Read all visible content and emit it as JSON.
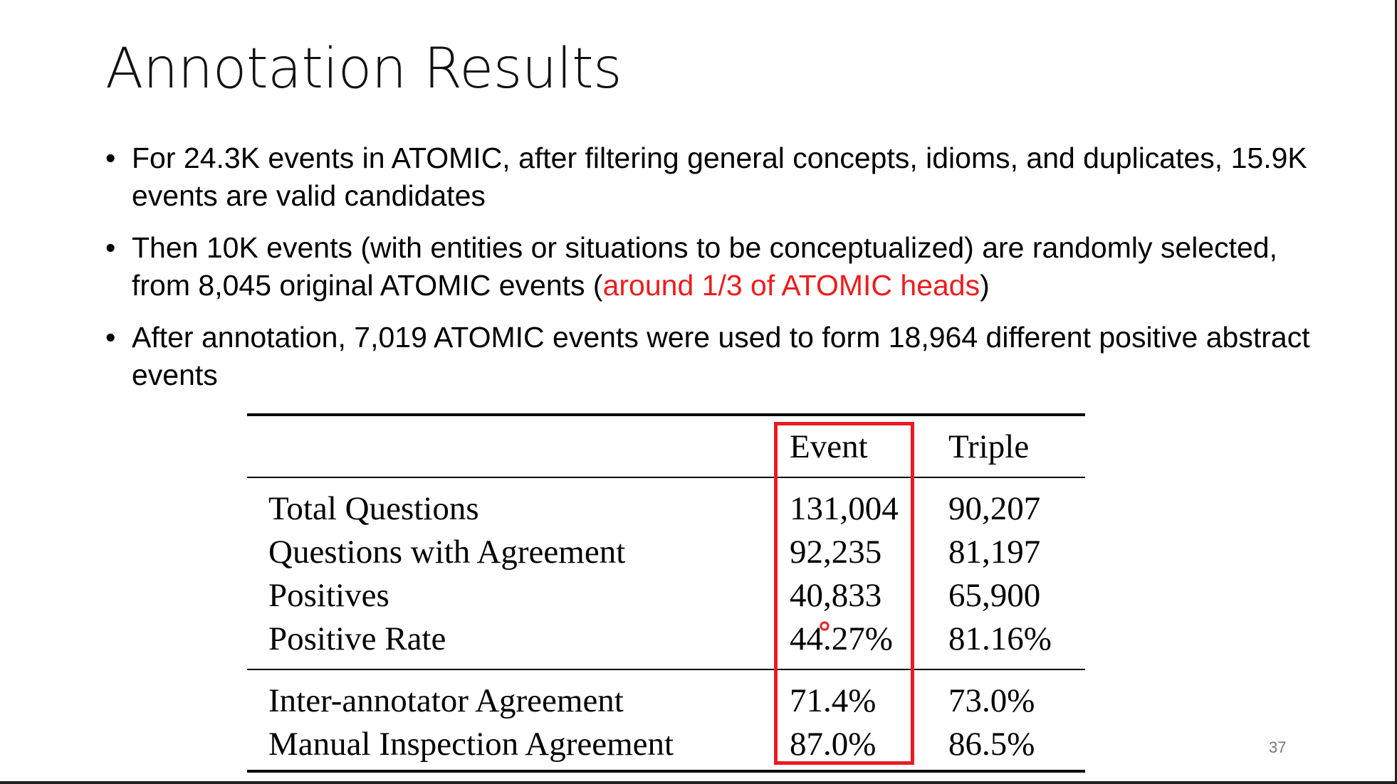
{
  "slide": {
    "title": "Annotation Results",
    "page_number": "37"
  },
  "bullets": [
    {
      "text": "For 24.3K events in ATOMIC, after filtering general concepts, idioms, and duplicates, 15.9K events are valid candidates"
    },
    {
      "text_before": "Then 10K events (with entities or situations to be conceptualized) are randomly selected, from 8,045 original ATOMIC events (",
      "highlight": "around 1/3 of ATOMIC heads",
      "text_after": ")"
    },
    {
      "text": "After annotation, 7,019 ATOMIC events were used to form 18,964 different positive abstract events"
    }
  ],
  "colors": {
    "highlight_text": "#ee1c1c",
    "highlight_box": "#ea1b23"
  },
  "table": {
    "headers": [
      "",
      "Event",
      "Triple"
    ],
    "group1": [
      {
        "metric": "Total Questions",
        "event": "131,004",
        "triple": "90,207"
      },
      {
        "metric": "Questions with Agreement",
        "event": "92,235",
        "triple": "81,197"
      },
      {
        "metric": "Positives",
        "event": "40,833",
        "triple": "65,900"
      },
      {
        "metric": "Positive Rate",
        "event": "44.27%",
        "triple": "81.16%"
      }
    ],
    "group2": [
      {
        "metric": "Inter-annotator Agreement",
        "event": "71.4%",
        "triple": "73.0%"
      },
      {
        "metric": "Manual Inspection Agreement",
        "event": "87.0%",
        "triple": "86.5%"
      }
    ]
  }
}
